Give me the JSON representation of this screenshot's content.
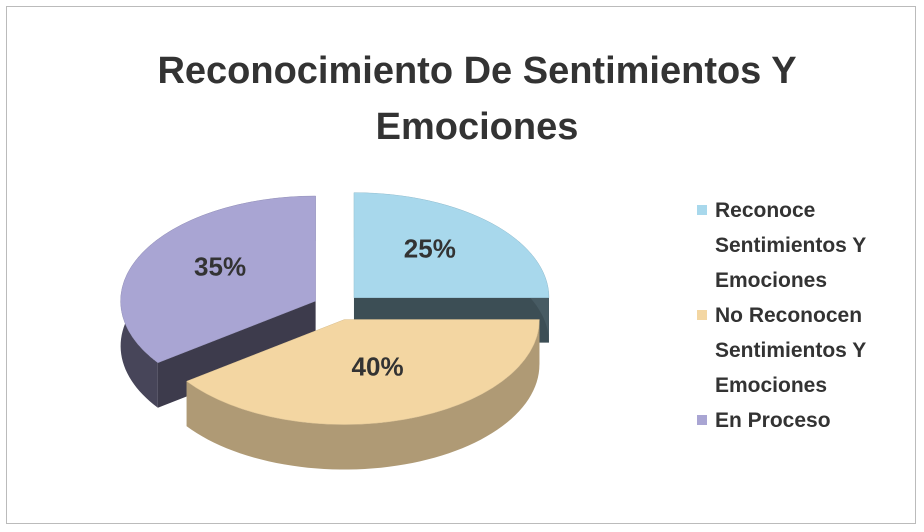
{
  "chart_data": {
    "type": "pie",
    "title": "Reconocimiento De Sentimientos Y Emociones",
    "categories": [
      "Reconoce Sentimientos Y Emociones",
      "No Reconocen Sentimientos Y Emociones",
      "En Proceso"
    ],
    "values": [
      25,
      40,
      35
    ],
    "value_labels": [
      "25%",
      "40%",
      "35%"
    ],
    "colors": [
      "#a8d8ec",
      "#f3d6a2",
      "#a9a5d3"
    ],
    "legend": "right"
  }
}
